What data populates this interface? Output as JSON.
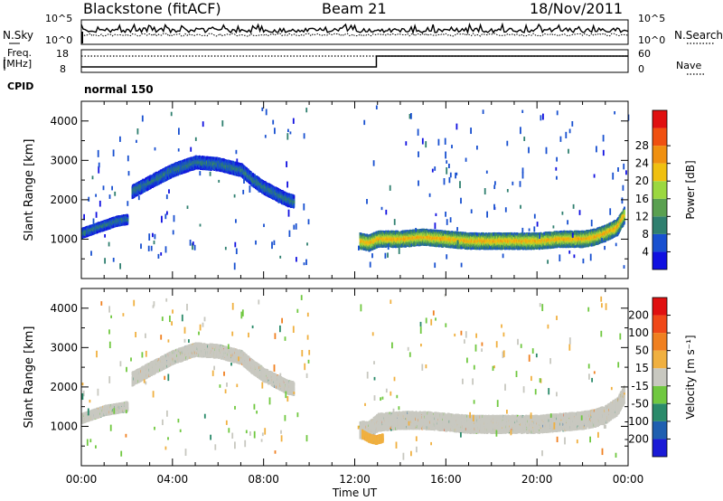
{
  "header": {
    "station": "Blackstone (fitACF)",
    "beam": "Beam 21",
    "date": "18/Nov/2011"
  },
  "status_panel": {
    "nsky_label": "N.Sky",
    "nsearch_label": "N.Search",
    "freq_label_top": "Freq.",
    "freq_label_unit": "[MHz]",
    "nave_label": "Nave",
    "cpid_label": "CPID",
    "cpid_value": "normal 150",
    "noise_ticks_left": [
      "10^5",
      "10^0"
    ],
    "noise_ticks_right": [
      "10^5",
      "10^0"
    ],
    "freq_ticks": [
      "18",
      "8"
    ],
    "nave_ticks": [
      "60",
      "0"
    ]
  },
  "x_axis": {
    "label": "Time UT",
    "ticks": [
      "00:00",
      "04:00",
      "08:00",
      "12:00",
      "16:00",
      "20:00",
      "00:00"
    ]
  },
  "colors": {
    "power_scale": [
      "#1010e0",
      "#1850d0",
      "#2f7f6f",
      "#5aa050",
      "#9bd840",
      "#f0c010",
      "#f09010",
      "#f05010",
      "#e01010"
    ],
    "velocity_scale": [
      "#1a1ad6",
      "#1f5fb0",
      "#2a8a6a",
      "#70c840",
      "#c8c8c0",
      "#f0b040",
      "#f08020",
      "#f04818",
      "#e01010"
    ]
  },
  "chart_data": [
    {
      "type": "heatmap",
      "title": "Power",
      "ylabel": "Slant Range [km]",
      "xlabel": "",
      "ylim": [
        0,
        4500
      ],
      "y_ticks": [
        "1000",
        "2000",
        "3000",
        "4000"
      ],
      "xlim_hours": [
        0,
        24
      ],
      "colorbar": {
        "label": "Power [dB]",
        "ticks": [
          "4",
          "8",
          "12",
          "16",
          "20",
          "24",
          "28"
        ],
        "range": [
          0,
          32
        ]
      },
      "bands": [
        {
          "t": [
            0.0,
            0.5,
            1.0,
            1.5,
            2.0
          ],
          "range_km": [
            1150,
            1250,
            1350,
            1450,
            1500
          ],
          "width_km": 220,
          "value": 8
        },
        {
          "t": [
            2.2,
            3.0,
            4.0,
            5.0,
            6.0,
            7.0,
            7.5,
            8.0,
            8.5,
            9.0,
            9.3
          ],
          "range_km": [
            2200,
            2450,
            2750,
            2950,
            2900,
            2750,
            2500,
            2300,
            2150,
            2000,
            1950
          ],
          "width_km": 300,
          "value": 8
        },
        {
          "t": [
            12.2,
            12.6,
            13.0,
            14.0,
            15.0,
            16.0,
            17.0,
            18.0,
            19.0,
            20.0,
            21.0,
            22.0,
            22.5,
            23.0,
            23.5,
            23.8
          ],
          "range_km": [
            950,
            900,
            1000,
            1000,
            1050,
            1000,
            950,
            950,
            950,
            950,
            1000,
            1000,
            1050,
            1150,
            1300,
            1600
          ],
          "width_km": 380,
          "value": 20
        }
      ]
    },
    {
      "type": "heatmap",
      "title": "Velocity",
      "ylabel": "Slant Range [km]",
      "xlabel": "Time UT",
      "ylim": [
        0,
        4500
      ],
      "y_ticks": [
        "1000",
        "2000",
        "3000",
        "4000"
      ],
      "xlim_hours": [
        0,
        24
      ],
      "colorbar": {
        "label": "Velocity [m s⁻¹]",
        "ticks": [
          "200",
          "100",
          "50",
          "15",
          "-15",
          "-50",
          "-100",
          "-200"
        ],
        "range": [
          -250,
          250
        ]
      },
      "bands": [
        {
          "t": [
            0.0,
            0.5,
            1.0,
            1.5,
            2.0
          ],
          "range_km": [
            1200,
            1300,
            1400,
            1450,
            1500
          ],
          "width_km": 220,
          "value": 0
        },
        {
          "t": [
            2.2,
            3.0,
            4.0,
            5.0,
            6.0,
            7.0,
            7.5,
            8.0,
            8.5,
            9.0,
            9.3
          ],
          "range_km": [
            2200,
            2450,
            2750,
            2950,
            2900,
            2750,
            2500,
            2300,
            2150,
            2000,
            1950
          ],
          "width_km": 320,
          "value": 0
        },
        {
          "t": [
            12.2,
            12.6,
            13.0,
            14.0,
            15.0,
            16.0,
            17.0,
            18.0,
            19.0,
            20.0,
            21.0,
            22.0,
            22.5,
            23.0,
            23.5,
            23.8
          ],
          "range_km": [
            900,
            900,
            1100,
            1150,
            1150,
            1100,
            1050,
            1050,
            1050,
            1050,
            1100,
            1150,
            1200,
            1300,
            1500,
            1800
          ],
          "width_km": 420,
          "value": 0
        },
        {
          "t": [
            12.3,
            12.6,
            12.9,
            13.2
          ],
          "range_km": [
            800,
            700,
            650,
            700
          ],
          "width_km": 180,
          "value": 40
        }
      ]
    }
  ]
}
